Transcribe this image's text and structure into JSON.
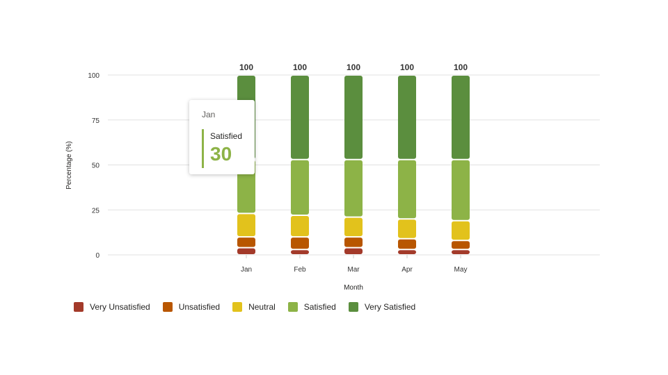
{
  "chart_data": {
    "type": "bar",
    "stacked": true,
    "xlabel": "Month",
    "ylabel": "Percentage (%)",
    "ylim": [
      0,
      100
    ],
    "yticks": [
      0,
      25,
      50,
      75,
      100
    ],
    "grid": true,
    "legend_position": "bottom-left",
    "categories": [
      "Jan",
      "Feb",
      "Mar",
      "Apr",
      "May"
    ],
    "totals": [
      "100",
      "100",
      "100",
      "100",
      "100"
    ],
    "series": [
      {
        "name": "Very Unsatisfied",
        "color": "#a33a2a",
        "values": [
          4,
          3,
          4,
          3,
          3
        ]
      },
      {
        "name": "Unsatisfied",
        "color": "#b85600",
        "values": [
          6,
          7,
          6,
          6,
          5
        ]
      },
      {
        "name": "Neutral",
        "color": "#e2c21c",
        "values": [
          13,
          12,
          11,
          11,
          11
        ]
      },
      {
        "name": "Satisfied",
        "color": "#8db347",
        "values": [
          30,
          31,
          32,
          33,
          34
        ]
      },
      {
        "name": "Very Satisfied",
        "color": "#5b8e3e",
        "values": [
          47,
          47,
          47,
          47,
          47
        ]
      }
    ]
  },
  "tooltip": {
    "category": "Jan",
    "series": "Satisfied",
    "value": "30"
  }
}
